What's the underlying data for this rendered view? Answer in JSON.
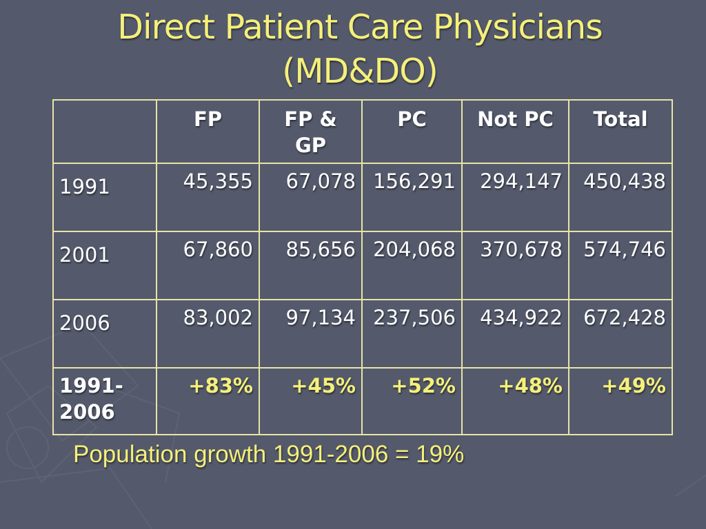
{
  "slide": {
    "title_line1": "Direct Patient Care Physicians",
    "title_line2": "(MD&DO)",
    "footnote": "Population growth 1991-2006 = 19%"
  },
  "table": {
    "headers": [
      "",
      "FP",
      "FP & GP",
      "PC",
      "Not PC",
      "Total"
    ],
    "rows": [
      {
        "label": "1991",
        "cells": [
          "45,355",
          "67,078",
          "156,291",
          "294,147",
          "450,438"
        ]
      },
      {
        "label": "2001",
        "cells": [
          "67,860",
          "85,656",
          "204,068",
          "370,678",
          "574,746"
        ]
      },
      {
        "label": "2006",
        "cells": [
          "83,002",
          "97,134",
          "237,506",
          "434,922",
          "672,428"
        ]
      }
    ],
    "growth_row": {
      "label": "1991-2006",
      "cells": [
        "+83%",
        "+45%",
        "+52%",
        "+48%",
        "+49%"
      ]
    }
  },
  "colors": {
    "background": "#545a6b",
    "title": "#f5f07a",
    "table_border": "#e8e4a8",
    "growth_text": "#f5f07a"
  }
}
